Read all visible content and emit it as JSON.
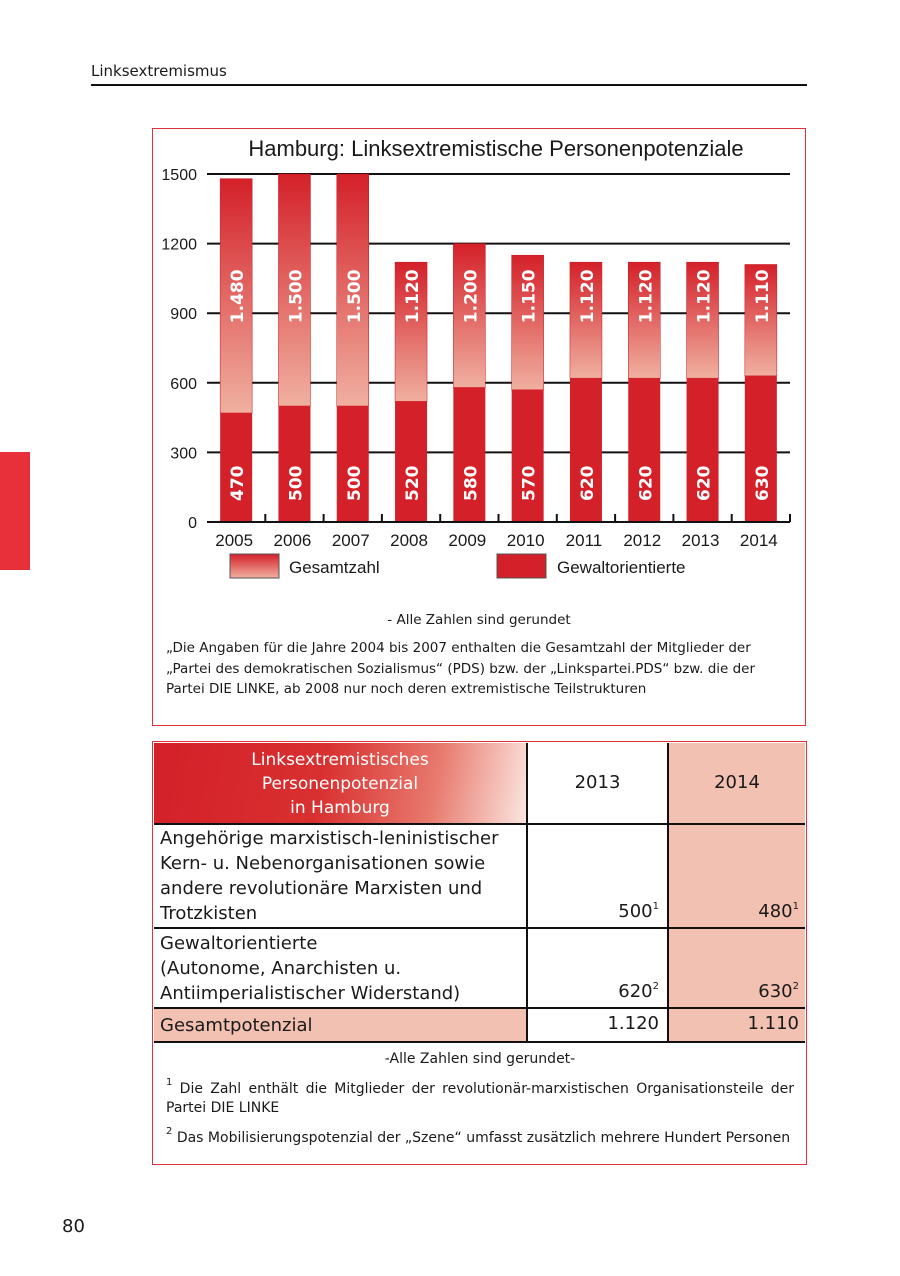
{
  "header": {
    "running_title": "Linksextremismus",
    "page_number": "80"
  },
  "colors": {
    "accent": "#e0303a",
    "bar_dark": "#d42029",
    "table_pink": "#f2c1b1"
  },
  "chart_data": {
    "type": "bar",
    "title": "Hamburg: Linksextremistische Personenpotenziale",
    "categories": [
      "2005",
      "2006",
      "2007",
      "2008",
      "2009",
      "2010",
      "2011",
      "2012",
      "2013",
      "2014"
    ],
    "series": [
      {
        "name": "Gesamtzahl",
        "values": [
          1480,
          1500,
          1500,
          1120,
          1200,
          1150,
          1120,
          1120,
          1120,
          1110
        ],
        "labels": [
          "1.480",
          "1.500",
          "1.500",
          "1.120",
          "1.200",
          "1.150",
          "1.120",
          "1.120",
          "1.120",
          "1.110"
        ]
      },
      {
        "name": "Gewaltorientierte",
        "values": [
          470,
          500,
          500,
          520,
          580,
          570,
          620,
          620,
          620,
          630
        ],
        "labels": [
          "470",
          "500",
          "500",
          "520",
          "580",
          "570",
          "620",
          "620",
          "620",
          "630"
        ]
      }
    ],
    "yticks": [
      "0",
      "300",
      "600",
      "900",
      "1200",
      "1500"
    ],
    "ylim": [
      0,
      1500
    ],
    "grid": true,
    "legend": "bottom",
    "xlabel": "",
    "ylabel": ""
  },
  "chart_notes": {
    "rounded": "- Alle Zahlen sind gerundet",
    "explanation": "„Die Angaben für die Jahre 2004 bis 2007 enthalten die Gesamtzahl der Mitglieder der „Partei des demokratischen Sozialismus“ (PDS) bzw. der „Linkspartei.PDS“ bzw. die der Partei DIE LINKE, ab 2008 nur noch deren extremistische Teilstrukturen"
  },
  "table": {
    "header": {
      "l1": "Linksextremistisches",
      "l2": "Personenpotenzial",
      "l3": "in Hamburg",
      "col2013": "2013",
      "col2014": "2014"
    },
    "rows": [
      {
        "lines": [
          "Angehörige marxistisch-leninistischer",
          "Kern- u. Nebenorganisationen sowie",
          "andere revolutionäre Marxisten und",
          "Trotzkisten"
        ],
        "v2013": "500",
        "s2013": "1",
        "v2014": "480",
        "s2014": "1"
      },
      {
        "lines": [
          "Gewaltorientierte",
          "(Autonome, Anarchisten u.",
          "Antiimperialistischer Widerstand)"
        ],
        "v2013": "620",
        "s2013": "2",
        "v2014": "630",
        "s2014": "2"
      },
      {
        "label": "Gesamtpotenzial",
        "v2013": "1.120",
        "v2014": "1.110"
      }
    ],
    "footnotes": {
      "rounded": "-Alle Zahlen sind gerundet-",
      "f1_mark": "1",
      "f1": " Die Zahl enthält die Mitglieder der revolutionär-marxistischen Organisationsteile der Partei DIE LINKE",
      "f2_mark": "2",
      "f2": " Das Mobilisierungspotenzial der „Szene“ umfasst zusätzlich mehrere Hundert Personen"
    }
  }
}
